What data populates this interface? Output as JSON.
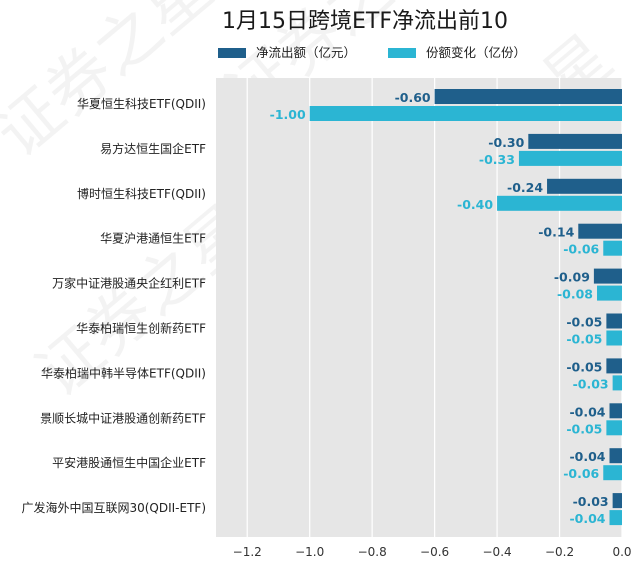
{
  "chart_data": {
    "type": "bar",
    "orientation": "horizontal",
    "title": "1月15日跨境ETF净流出前10",
    "categories": [
      "华夏恒生科技ETF(QDII)",
      "易方达恒生国企ETF",
      "博时恒生科技ETF(QDII)",
      "华夏沪港通恒生ETF",
      "万家中证港股通央企红利ETF",
      "华泰柏瑞恒生创新药ETF",
      "华泰柏瑞中韩半导体ETF(QDII)",
      "景顺长城中证港股通创新药ETF",
      "平安港股通恒生中国企业ETF",
      "广发海外中国互联网30(QDII-ETF)"
    ],
    "series": [
      {
        "name": "净流出额（亿元）",
        "color": "#1f5f8b",
        "values": [
          -0.6,
          -0.3,
          -0.24,
          -0.14,
          -0.09,
          -0.05,
          -0.05,
          -0.04,
          -0.04,
          -0.03
        ]
      },
      {
        "name": "份额变化（亿份）",
        "color": "#2bb5d3",
        "values": [
          -1.0,
          -0.33,
          -0.4,
          -0.06,
          -0.08,
          -0.05,
          -0.03,
          -0.05,
          -0.06,
          -0.04
        ]
      }
    ],
    "xlim": [
      -1.3,
      0.0
    ],
    "xticks": [
      -1.2,
      -1.0,
      -0.8,
      -0.6,
      -0.4,
      -0.2,
      0.0
    ],
    "grid": true,
    "legend": "top",
    "watermark": "证券之星"
  }
}
